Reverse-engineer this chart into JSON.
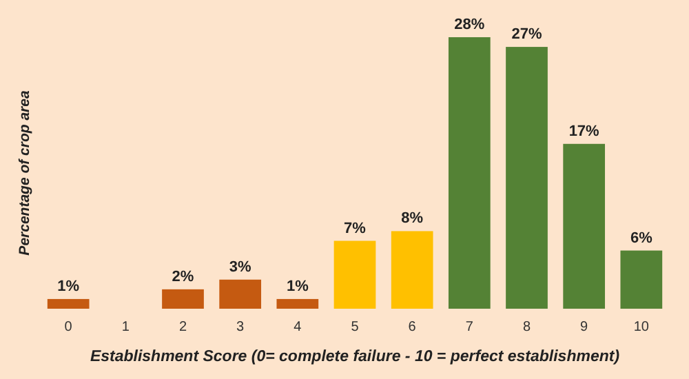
{
  "chart_data": {
    "type": "bar",
    "xlabel": "Establishment Score (0= complete failure - 10 = perfect establishment)",
    "ylabel": "Percentage of crop area",
    "categories": [
      "0",
      "1",
      "2",
      "3",
      "4",
      "5",
      "6",
      "7",
      "8",
      "9",
      "10"
    ],
    "values": [
      1,
      null,
      2,
      3,
      1,
      7,
      8,
      28,
      27,
      17,
      6
    ],
    "colors": [
      "#c55a11",
      null,
      "#c55a11",
      "#c55a11",
      "#c55a11",
      "#ffc000",
      "#ffc000",
      "#548235",
      "#548235",
      "#548235",
      "#548235"
    ],
    "value_labels": [
      "1%",
      null,
      "2%",
      "3%",
      "1%",
      "7%",
      "8%",
      "28%",
      "27%",
      "17%",
      "6%"
    ]
  }
}
